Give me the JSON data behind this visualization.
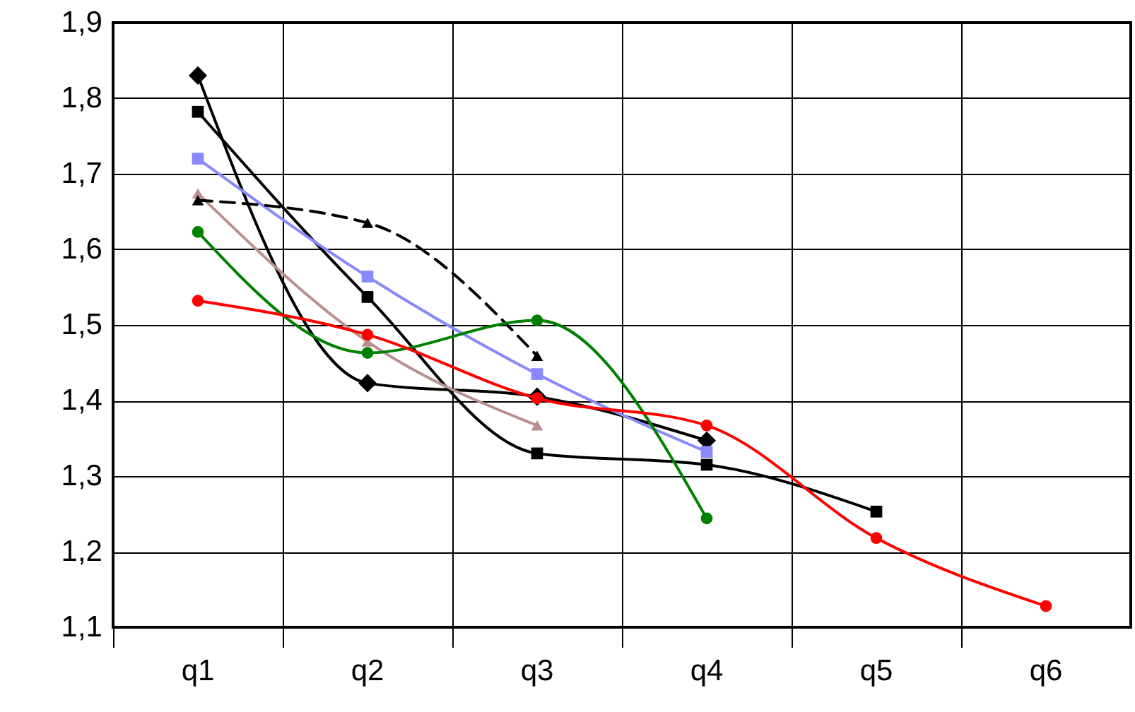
{
  "chart_data": {
    "type": "line",
    "categories": [
      "q1",
      "q2",
      "q3",
      "q4",
      "q5",
      "q6"
    ],
    "ylim": [
      1.1,
      1.9
    ],
    "yticks": [
      {
        "value": 1.1,
        "label": "1,1"
      },
      {
        "value": 1.2,
        "label": "1,2"
      },
      {
        "value": 1.3,
        "label": "1,3"
      },
      {
        "value": 1.4,
        "label": "1,4"
      },
      {
        "value": 1.5,
        "label": "1,5"
      },
      {
        "value": 1.6,
        "label": "1,6"
      },
      {
        "value": 1.7,
        "label": "1,7"
      },
      {
        "value": 1.8,
        "label": "1,8"
      },
      {
        "value": 1.9,
        "label": "1,9"
      }
    ],
    "grid": true,
    "series": [
      {
        "color": "#000000",
        "marker": "diamond",
        "line_style": "solid",
        "values": [
          1.83,
          1.423,
          1.405,
          1.347,
          null,
          null
        ]
      },
      {
        "color": "#000000",
        "marker": "square",
        "line_style": "solid",
        "values": [
          1.782,
          1.537,
          1.33,
          1.315,
          1.253,
          null
        ]
      },
      {
        "color": "#8888ff",
        "marker": "square",
        "line_style": "solid",
        "values": [
          1.72,
          1.564,
          1.435,
          1.332,
          null,
          null
        ]
      },
      {
        "color": "#bc8f8f",
        "marker": "triangle",
        "line_style": "solid",
        "values": [
          1.674,
          1.478,
          1.367,
          null,
          null,
          null
        ]
      },
      {
        "color": "#000000",
        "marker": "triangle",
        "line_style": "dashed",
        "values": [
          1.665,
          1.635,
          1.459,
          null,
          null,
          null
        ]
      },
      {
        "color": "#008000",
        "marker": "circle",
        "line_style": "solid",
        "values": [
          1.623,
          1.463,
          1.506,
          1.244,
          null,
          null
        ]
      },
      {
        "color": "#ff0000",
        "marker": "circle",
        "line_style": "solid",
        "values": [
          1.532,
          1.487,
          1.403,
          1.367,
          1.218,
          1.128
        ]
      }
    ]
  }
}
